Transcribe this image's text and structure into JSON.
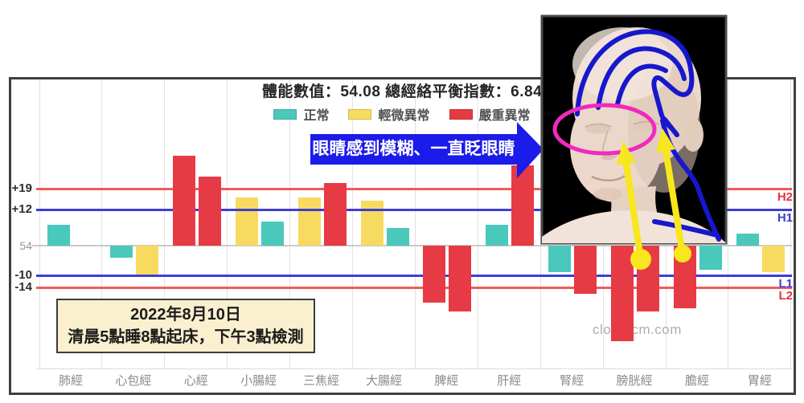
{
  "title": "體能數值：54.08 總經絡平衡指數：6.84",
  "legend": [
    {
      "label": "正常",
      "color": "#4AC8BC"
    },
    {
      "label": "輕微異常",
      "color": "#F7DB60"
    },
    {
      "label": "嚴重異常",
      "color": "#E63B44"
    }
  ],
  "annotation_arrow": {
    "text": "眼睛感到模糊、一直眨眼睛",
    "color": "#1B1BEA"
  },
  "date_note": {
    "line1": "2022年8月10日",
    "line2": "清晨5點睡8點起床，下午3點檢測"
  },
  "watermark": "cloudtcm.com",
  "chart_data": {
    "type": "bar",
    "title": "體能數值：54.08 總經絡平衡指數：6.84",
    "body_energy_value": "54.08",
    "balance_index": "6.84",
    "baseline": {
      "label": "54",
      "value": 0
    },
    "ylim": [
      -35,
      33
    ],
    "grid": true,
    "legend_position": "top",
    "reference_lines": [
      {
        "value": 19,
        "label_left": "+19",
        "label_right": "H2",
        "line_color": "#F15A5A",
        "label_right_color": "#E53440"
      },
      {
        "value": 12,
        "label_left": "+12",
        "label_right": "H1",
        "line_color": "#3D3DD8",
        "label_right_color": "#3D3DD8"
      },
      {
        "value": -10,
        "label_left": "-10",
        "label_right": "L1",
        "line_color": "#3D3DD8",
        "label_right_color": "#3D3DD8"
      },
      {
        "value": -14,
        "label_left": "-14",
        "label_right": "L2",
        "line_color": "#F15A5A",
        "label_right_color": "#E53440"
      }
    ],
    "categories": [
      "肺經",
      "心包經",
      "心經",
      "小腸經",
      "三焦經",
      "大腸經",
      "脾經",
      "肝經",
      "腎經",
      "膀胱經",
      "膽經",
      "胃經"
    ],
    "series": [
      {
        "name": "bar-1",
        "values": [
          7,
          -4,
          30,
          16,
          16,
          15,
          -19,
          7,
          -9,
          -32,
          -21,
          4
        ],
        "statuses": [
          "normal",
          "normal",
          "severe",
          "minor",
          "minor",
          "minor",
          "severe",
          "normal",
          "normal",
          "severe",
          "severe",
          "normal"
        ]
      },
      {
        "name": "bar-2",
        "values": [
          null,
          -10,
          23,
          8,
          21,
          6,
          -22,
          27,
          -16,
          -22,
          -8,
          -9
        ],
        "statuses": [
          null,
          "minor",
          "severe",
          "normal",
          "severe",
          "normal",
          "severe",
          "severe",
          "severe",
          "severe",
          "normal",
          "minor"
        ]
      }
    ],
    "status_colors": {
      "normal": "#4AC8BC",
      "minor": "#F7DB60",
      "severe": "#E63B44"
    }
  }
}
